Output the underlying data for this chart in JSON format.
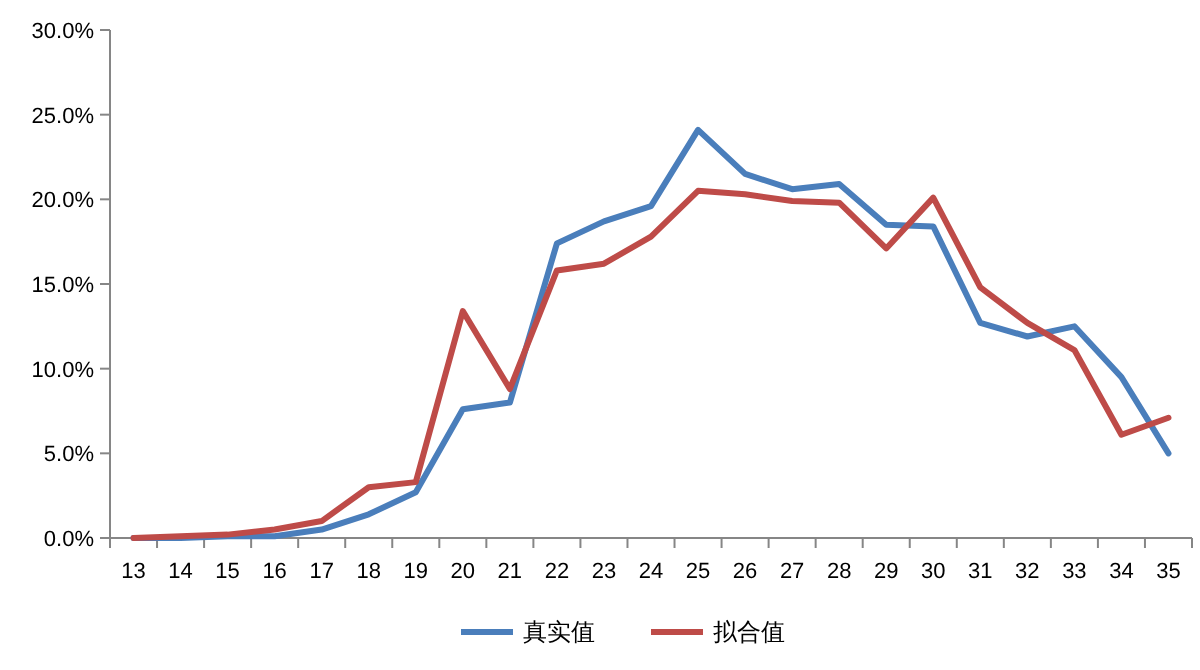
{
  "chart_data": {
    "type": "line",
    "categories": [
      "13",
      "14",
      "15",
      "16",
      "17",
      "18",
      "19",
      "20",
      "21",
      "22",
      "23",
      "24",
      "25",
      "26",
      "27",
      "28",
      "29",
      "30",
      "31",
      "32",
      "33",
      "34",
      "35"
    ],
    "series": [
      {
        "name": "真实值",
        "color": "#4a7ebb",
        "values": [
          0,
          0,
          0.1,
          0.1,
          0.5,
          1.4,
          2.7,
          7.6,
          8.0,
          17.4,
          18.7,
          19.6,
          24.1,
          21.5,
          20.6,
          20.9,
          18.5,
          18.4,
          12.7,
          11.9,
          12.5,
          9.5,
          5.0
        ]
      },
      {
        "name": "拟合值",
        "color": "#be4b48",
        "values": [
          0,
          0.1,
          0.2,
          0.5,
          1.0,
          3.0,
          3.3,
          13.4,
          8.8,
          15.8,
          16.2,
          17.8,
          20.5,
          20.3,
          19.9,
          19.8,
          17.1,
          20.1,
          14.8,
          12.7,
          11.1,
          6.1,
          7.1
        ]
      }
    ],
    "ylim": [
      0,
      30
    ],
    "yticks": [
      {
        "value": 0,
        "label": "0.0%"
      },
      {
        "value": 5,
        "label": "5.0%"
      },
      {
        "value": 10,
        "label": "10.0%"
      },
      {
        "value": 15,
        "label": "15.0%"
      },
      {
        "value": 20,
        "label": "20.0%"
      },
      {
        "value": 25,
        "label": "25.0%"
      },
      {
        "value": 30,
        "label": "30.0%"
      }
    ],
    "grid": false,
    "legend": "bottom",
    "marker": "none",
    "line_style": "solid"
  }
}
